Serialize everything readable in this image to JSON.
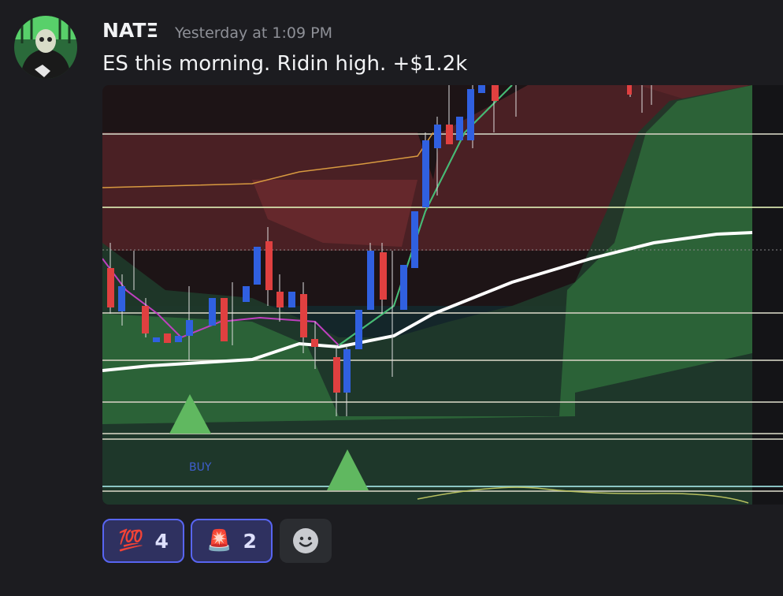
{
  "message": {
    "author": "NATΞ",
    "timestamp": "Yesterday at 1:09 PM",
    "text": "ES this morning. Ridin high. +$1.2k",
    "image": {
      "label": "BUY"
    },
    "reactions": [
      {
        "emoji": "💯",
        "count": 4
      },
      {
        "emoji": "🚨",
        "count": 2
      }
    ]
  }
}
